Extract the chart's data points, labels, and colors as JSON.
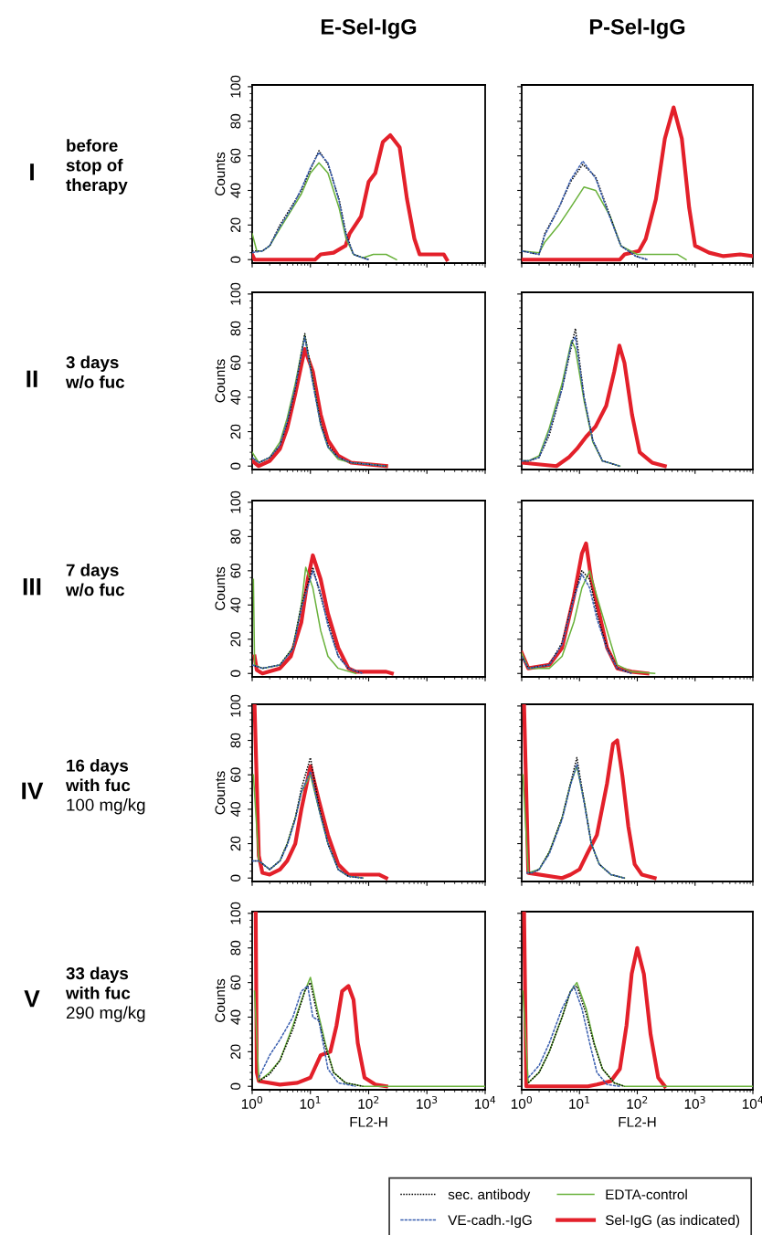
{
  "chart_data": [
    {
      "type": "line",
      "title": "E-Sel-IgG",
      "ylabel": "Counts",
      "annotations": [
        "I",
        "before\nstop of\ntherapy"
      ],
      "log": "x",
      "xlim": [
        1,
        10000
      ],
      "ylim": [
        -2,
        101
      ],
      "xticks": [
        {
          "value": 1,
          "label": null
        },
        {
          "value": 10,
          "label": null
        },
        {
          "value": 100,
          "label": null
        },
        {
          "value": 1000,
          "label": null
        },
        {
          "value": 10000,
          "label": null
        }
      ],
      "yticks": [
        0,
        20,
        40,
        60,
        80,
        100
      ],
      "tick_labels": "y",
      "grid": false,
      "legend": "bottom",
      "series": [
        {
          "name": "sec. antibody",
          "color": "#000000",
          "line_style": "dotted",
          "x": [
            1,
            1.5,
            2,
            3,
            5,
            7,
            10,
            14,
            20,
            31,
            41,
            55,
            80,
            100
          ],
          "values": [
            5,
            5,
            8,
            20,
            32,
            40,
            52,
            63,
            55,
            35,
            15,
            3,
            1,
            0
          ]
        },
        {
          "name": "VE-cadh.-IgG",
          "color": "#3a5fb0",
          "line_style": "dashed",
          "x": [
            1,
            1.5,
            2,
            3,
            5,
            7,
            10,
            14,
            20,
            31,
            41,
            55,
            80,
            100
          ],
          "values": [
            4,
            5,
            8,
            19,
            31,
            41,
            53,
            62,
            56,
            34,
            14,
            3,
            1,
            0
          ]
        },
        {
          "name": "EDTA-control",
          "color": "#6ab23c",
          "line_style": "solid",
          "x": [
            1,
            1.2,
            1.5,
            2,
            3,
            5,
            7,
            10,
            14,
            20,
            31,
            41,
            55,
            80,
            120,
            200,
            300
          ],
          "values": [
            15,
            5,
            5,
            8,
            18,
            30,
            38,
            50,
            56,
            50,
            30,
            12,
            3,
            1,
            3,
            3,
            0
          ]
        },
        {
          "name": "Sel-IgG (as indicated)",
          "color": "#e3202a",
          "line_style": "solid",
          "x": [
            1,
            1.1,
            12,
            15,
            25,
            40,
            47,
            74,
            100,
            130,
            175,
            235,
            340,
            455,
            610,
            750,
            1950,
            2200
          ],
          "values": [
            3,
            0,
            0,
            3,
            4,
            8,
            15,
            25,
            45,
            50,
            68,
            72,
            65,
            35,
            12,
            3,
            3,
            0
          ]
        }
      ]
    },
    {
      "type": "line",
      "title": "P-Sel-IgG",
      "log": "x",
      "xlim": [
        1,
        10000
      ],
      "ylim": [
        -2,
        101
      ],
      "xticks": [
        {
          "value": 1,
          "label": null
        },
        {
          "value": 10,
          "label": null
        },
        {
          "value": 100,
          "label": null
        },
        {
          "value": 1000,
          "label": null
        },
        {
          "value": 10000,
          "label": null
        }
      ],
      "yticks": [
        {
          "value": 0,
          "label": null
        },
        {
          "value": 20,
          "label": null
        },
        {
          "value": 40,
          "label": null
        },
        {
          "value": 60,
          "label": null
        },
        {
          "value": 80,
          "label": null
        },
        {
          "value": 100,
          "label": null
        }
      ],
      "tick_labels": false,
      "grid": false,
      "series": [
        {
          "color": "#000000",
          "line_style": "dotted",
          "x": [
            1,
            2,
            2.5,
            4.4,
            7,
            11.4,
            19,
            34,
            52,
            94,
            150
          ],
          "values": [
            5,
            3,
            15,
            30,
            45,
            55,
            48,
            25,
            8,
            2,
            0
          ]
        },
        {
          "color": "#3a5fb0",
          "line_style": "dashed",
          "x": [
            1,
            2,
            2.5,
            4.4,
            7,
            11.4,
            19,
            34,
            52,
            94,
            150
          ],
          "values": [
            5,
            3,
            14,
            30,
            46,
            57,
            47,
            24,
            8,
            2,
            0
          ]
        },
        {
          "color": "#6ab23c",
          "line_style": "solid",
          "x": [
            1,
            2,
            2.5,
            4.4,
            7,
            12,
            19,
            34,
            52,
            100,
            300,
            500,
            700
          ],
          "values": [
            5,
            4,
            10,
            20,
            30,
            42,
            40,
            25,
            8,
            3,
            3,
            3,
            0
          ]
        },
        {
          "color": "#e3202a",
          "line_style": "solid",
          "x": [
            1,
            50,
            60,
            107,
            140,
            210,
            300,
            425,
            590,
            790,
            1000,
            1750,
            3100,
            6000,
            10000
          ],
          "values": [
            0,
            0,
            3,
            5,
            12,
            35,
            70,
            88,
            70,
            30,
            8,
            4,
            2,
            3,
            2
          ]
        }
      ]
    },
    {
      "type": "line",
      "ylabel": "Counts",
      "annotations": [
        "II",
        "3 days\nw/o fuc"
      ],
      "log": "x",
      "xlim": [
        1,
        10000
      ],
      "ylim": [
        -2,
        101
      ],
      "xticks": [
        {
          "value": 1,
          "label": null
        },
        {
          "value": 10,
          "label": null
        },
        {
          "value": 100,
          "label": null
        },
        {
          "value": 1000,
          "label": null
        },
        {
          "value": 10000,
          "label": null
        }
      ],
      "yticks": [
        0,
        20,
        40,
        60,
        80,
        100
      ],
      "tick_labels": "y",
      "grid": false,
      "series": [
        {
          "color": "#000000",
          "line_style": "dotted",
          "x": [
            1,
            1.3,
            2,
            3,
            4,
            5.5,
            8,
            11,
            15,
            20,
            30,
            50,
            100,
            200
          ],
          "values": [
            5,
            2,
            5,
            12,
            25,
            45,
            77,
            50,
            25,
            12,
            5,
            2,
            1,
            0
          ]
        },
        {
          "color": "#3a5fb0",
          "line_style": "dashed",
          "x": [
            1,
            1.3,
            2,
            3,
            4,
            5.5,
            8,
            11,
            15,
            20,
            30,
            50,
            100,
            200
          ],
          "values": [
            5,
            2,
            5,
            12,
            26,
            46,
            75,
            48,
            24,
            11,
            5,
            2,
            1,
            0
          ]
        },
        {
          "color": "#6ab23c",
          "line_style": "solid",
          "x": [
            1,
            1.3,
            2,
            3,
            4,
            5.5,
            8,
            11,
            15,
            20,
            30,
            50,
            100,
            200
          ],
          "values": [
            8,
            2,
            5,
            14,
            28,
            48,
            76,
            50,
            24,
            11,
            4,
            2,
            1,
            0
          ]
        },
        {
          "color": "#e3202a",
          "line_style": "solid",
          "x": [
            1,
            1.3,
            2,
            3,
            4,
            5.5,
            8,
            11,
            15,
            20,
            30,
            50,
            100,
            200
          ],
          "values": [
            3,
            0,
            3,
            10,
            22,
            42,
            68,
            55,
            30,
            15,
            6,
            2,
            1,
            0
          ]
        }
      ]
    },
    {
      "type": "line",
      "log": "x",
      "xlim": [
        1,
        10000
      ],
      "ylim": [
        -2,
        101
      ],
      "xticks": [
        {
          "value": 1,
          "label": null
        },
        {
          "value": 10,
          "label": null
        },
        {
          "value": 100,
          "label": null
        },
        {
          "value": 1000,
          "label": null
        },
        {
          "value": 10000,
          "label": null
        }
      ],
      "yticks": [
        {
          "value": 0,
          "label": null
        },
        {
          "value": 20,
          "label": null
        },
        {
          "value": 40,
          "label": null
        },
        {
          "value": 60,
          "label": null
        },
        {
          "value": 80,
          "label": null
        },
        {
          "value": 100,
          "label": null
        }
      ],
      "tick_labels": false,
      "grid": false,
      "series": [
        {
          "color": "#000000",
          "line_style": "dotted",
          "x": [
            1,
            1.3,
            2,
            3,
            5,
            7.3,
            8.5,
            12,
            17,
            25,
            50
          ],
          "values": [
            3,
            3,
            5,
            18,
            45,
            70,
            80,
            40,
            15,
            3,
            0
          ]
        },
        {
          "color": "#3a5fb0",
          "line_style": "dashed",
          "x": [
            1,
            1.3,
            2,
            3,
            5,
            7.3,
            8.5,
            12,
            17,
            25,
            50
          ],
          "values": [
            3,
            3,
            5,
            20,
            45,
            72,
            75,
            40,
            15,
            3,
            0
          ]
        },
        {
          "color": "#6ab23c",
          "line_style": "solid",
          "x": [
            1,
            1.3,
            2,
            3,
            5,
            7.3,
            8.5,
            12,
            17,
            25,
            50
          ],
          "values": [
            3,
            3,
            6,
            22,
            48,
            73,
            68,
            38,
            14,
            3,
            0
          ]
        },
        {
          "color": "#e3202a",
          "line_style": "solid",
          "x": [
            1,
            4,
            6.5,
            9,
            13,
            19,
            29,
            40,
            49,
            60,
            81,
            110,
            180,
            300
          ],
          "values": [
            2,
            0,
            5,
            10,
            17,
            23,
            35,
            55,
            70,
            60,
            30,
            8,
            2,
            0
          ]
        }
      ]
    },
    {
      "type": "line",
      "ylabel": "Counts",
      "annotations": [
        "III",
        "7 days\nw/o fuc"
      ],
      "log": "x",
      "xlim": [
        1,
        10000
      ],
      "ylim": [
        -2,
        101
      ],
      "xticks": [
        {
          "value": 1,
          "label": null
        },
        {
          "value": 10,
          "label": null
        },
        {
          "value": 100,
          "label": null
        },
        {
          "value": 1000,
          "label": null
        },
        {
          "value": 10000,
          "label": null
        }
      ],
      "yticks": [
        0,
        20,
        40,
        60,
        80,
        100
      ],
      "tick_labels": "y",
      "grid": false,
      "series": [
        {
          "color": "#000000",
          "line_style": "dotted",
          "x": [
            1,
            1.5,
            3,
            5,
            7,
            11,
            15,
            20,
            30,
            45,
            80
          ],
          "values": [
            5,
            3,
            5,
            15,
            40,
            62,
            45,
            30,
            10,
            3,
            0
          ]
        },
        {
          "color": "#3a5fb0",
          "line_style": "dashed",
          "x": [
            1,
            1.5,
            3,
            5,
            7,
            11,
            15,
            20,
            30,
            45,
            80
          ],
          "values": [
            5,
            3,
            5,
            14,
            38,
            60,
            47,
            28,
            10,
            3,
            0
          ]
        },
        {
          "color": "#6ab23c",
          "line_style": "solid",
          "x": [
            1.05,
            1.1,
            1.5,
            3,
            5,
            7,
            8.3,
            11,
            15,
            20,
            30,
            60
          ],
          "values": [
            55,
            5,
            3,
            5,
            15,
            40,
            62,
            50,
            25,
            10,
            3,
            0
          ]
        },
        {
          "color": "#e3202a",
          "line_style": "solid",
          "x": [
            1.1,
            1.2,
            1.5,
            3,
            4.6,
            7,
            9,
            11,
            15,
            20,
            30,
            45,
            60,
            200,
            250
          ],
          "values": [
            10,
            2,
            0,
            3,
            10,
            30,
            55,
            69,
            55,
            35,
            15,
            3,
            1,
            1,
            0
          ]
        }
      ]
    },
    {
      "type": "line",
      "log": "x",
      "xlim": [
        1,
        10000
      ],
      "ylim": [
        -2,
        101
      ],
      "xticks": [
        {
          "value": 1,
          "label": null
        },
        {
          "value": 10,
          "label": null
        },
        {
          "value": 100,
          "label": null
        },
        {
          "value": 1000,
          "label": null
        },
        {
          "value": 10000,
          "label": null
        }
      ],
      "yticks": [
        {
          "value": 0,
          "label": null
        },
        {
          "value": 20,
          "label": null
        },
        {
          "value": 40,
          "label": null
        },
        {
          "value": 60,
          "label": null
        },
        {
          "value": 80,
          "label": null
        },
        {
          "value": 100,
          "label": null
        }
      ],
      "tick_labels": false,
      "grid": false,
      "series": [
        {
          "color": "#000000",
          "line_style": "dotted",
          "x": [
            1,
            1.3,
            3,
            5,
            8,
            11,
            15,
            20,
            30,
            45,
            80
          ],
          "values": [
            10,
            3,
            5,
            18,
            45,
            60,
            55,
            35,
            15,
            3,
            0
          ]
        },
        {
          "color": "#3a5fb0",
          "line_style": "dashed",
          "x": [
            1,
            1.3,
            3,
            5,
            8,
            11,
            15,
            20,
            30,
            45,
            80
          ],
          "values": [
            10,
            3,
            5,
            17,
            44,
            58,
            50,
            32,
            14,
            3,
            0
          ]
        },
        {
          "color": "#6ab23c",
          "line_style": "solid",
          "x": [
            1,
            1.3,
            3,
            5,
            8,
            11,
            15,
            20,
            30,
            45,
            80,
            200
          ],
          "values": [
            12,
            3,
            3,
            10,
            30,
            50,
            60,
            45,
            25,
            5,
            1,
            0
          ]
        },
        {
          "color": "#e3202a",
          "line_style": "solid",
          "x": [
            1,
            1.3,
            3,
            5,
            8,
            11,
            13,
            16,
            22,
            30,
            45,
            80,
            150
          ],
          "values": [
            12,
            3,
            5,
            15,
            45,
            70,
            76,
            55,
            35,
            15,
            3,
            1,
            0
          ]
        }
      ]
    },
    {
      "type": "line",
      "ylabel": "Counts",
      "annotations": [
        "IV",
        "16 days\nwith fuc",
        "100 mg/kg"
      ],
      "log": "x",
      "xlim": [
        1,
        10000
      ],
      "ylim": [
        -2,
        101
      ],
      "xticks": [
        {
          "value": 1,
          "label": null
        },
        {
          "value": 10,
          "label": null
        },
        {
          "value": 100,
          "label": null
        },
        {
          "value": 1000,
          "label": null
        },
        {
          "value": 10000,
          "label": null
        }
      ],
      "yticks": [
        0,
        20,
        40,
        60,
        80,
        100
      ],
      "tick_labels": "y",
      "grid": false,
      "series": [
        {
          "color": "#000000",
          "line_style": "dotted",
          "x": [
            1,
            1.3,
            2,
            3,
            4,
            5.5,
            7,
            10,
            14,
            20,
            30,
            45,
            80
          ],
          "values": [
            10,
            10,
            5,
            10,
            20,
            35,
            52,
            70,
            42,
            20,
            5,
            1,
            0
          ]
        },
        {
          "color": "#3a5fb0",
          "line_style": "dashed",
          "x": [
            1,
            1.3,
            2,
            3,
            4,
            5.5,
            7,
            10,
            14,
            20,
            30,
            45,
            80
          ],
          "values": [
            10,
            10,
            5,
            10,
            19,
            34,
            50,
            62,
            40,
            20,
            5,
            1,
            0
          ]
        },
        {
          "color": "#6ab23c",
          "line_style": "solid",
          "x": [
            1.05,
            1.3,
            2,
            3,
            4,
            5.5,
            7,
            10,
            14,
            20,
            30,
            45,
            80
          ],
          "values": [
            60,
            10,
            5,
            10,
            20,
            35,
            50,
            60,
            40,
            20,
            5,
            1,
            0
          ]
        },
        {
          "color": "#e3202a",
          "line_style": "solid",
          "x": [
            1.1,
            1.3,
            1.5,
            2,
            3,
            4,
            5.5,
            7,
            10,
            14,
            20,
            30,
            45,
            80,
            150,
            200
          ],
          "values": [
            100,
            13,
            3,
            2,
            5,
            10,
            20,
            40,
            65,
            45,
            25,
            8,
            2,
            2,
            2,
            0
          ]
        }
      ]
    },
    {
      "type": "line",
      "log": "x",
      "xlim": [
        1,
        10000
      ],
      "ylim": [
        -2,
        101
      ],
      "xticks": [
        {
          "value": 1,
          "label": null
        },
        {
          "value": 10,
          "label": null
        },
        {
          "value": 100,
          "label": null
        },
        {
          "value": 1000,
          "label": null
        },
        {
          "value": 10000,
          "label": null
        }
      ],
      "yticks": [
        {
          "value": 0,
          "label": null
        },
        {
          "value": 20,
          "label": null
        },
        {
          "value": 40,
          "label": null
        },
        {
          "value": 60,
          "label": null
        },
        {
          "value": 80,
          "label": null
        },
        {
          "value": 100,
          "label": null
        }
      ],
      "tick_labels": false,
      "grid": false,
      "series": [
        {
          "color": "#000000",
          "line_style": "dotted",
          "x": [
            1.2,
            1.5,
            2,
            3,
            5,
            7,
            9,
            12,
            16,
            22,
            35,
            60
          ],
          "values": [
            3,
            3,
            5,
            15,
            35,
            55,
            70,
            45,
            20,
            8,
            2,
            0
          ]
        },
        {
          "color": "#3a5fb0",
          "line_style": "dashed",
          "x": [
            1.2,
            1.5,
            2,
            3,
            5,
            7,
            9,
            12,
            16,
            22,
            35,
            60
          ],
          "values": [
            3,
            3,
            5,
            14,
            34,
            54,
            66,
            44,
            20,
            8,
            2,
            0
          ]
        },
        {
          "color": "#6ab23c",
          "line_style": "solid",
          "x": [
            1.05,
            1.3,
            2,
            3,
            5,
            7,
            9,
            12,
            16,
            22,
            35,
            60
          ],
          "values": [
            60,
            3,
            5,
            15,
            35,
            55,
            65,
            45,
            20,
            8,
            2,
            0
          ]
        },
        {
          "color": "#e3202a",
          "line_style": "solid",
          "x": [
            1.1,
            1.3,
            5,
            7,
            10,
            14,
            20,
            30,
            38,
            45,
            55,
            70,
            90,
            120,
            200
          ],
          "values": [
            100,
            3,
            0,
            2,
            5,
            15,
            25,
            55,
            78,
            80,
            60,
            30,
            8,
            2,
            0
          ]
        }
      ]
    },
    {
      "type": "line",
      "ylabel": "Counts",
      "xlabel": "FL2-H",
      "annotations": [
        "V",
        "33 days\nwith fuc",
        "290 mg/kg"
      ],
      "log": "x",
      "xlim": [
        1,
        10000
      ],
      "ylim": [
        -2,
        101
      ],
      "xticks": [
        {
          "value": 1,
          "label": "10$^{0}$"
        },
        {
          "value": 10,
          "label": "10$^{1}$"
        },
        {
          "value": 100,
          "label": "10$^{2}$"
        },
        {
          "value": 1000,
          "label": "10$^{3}$"
        },
        {
          "value": 10000,
          "label": "10$^{4}$"
        }
      ],
      "yticks": [
        0,
        20,
        40,
        60,
        80,
        100
      ],
      "grid": false,
      "series": [
        {
          "color": "#000000",
          "line_style": "dotted",
          "x": [
            1.3,
            2,
            3,
            5,
            8,
            10,
            13,
            18,
            25,
            40,
            80
          ],
          "values": [
            3,
            7,
            15,
            33,
            55,
            60,
            42,
            23,
            8,
            2,
            0
          ]
        },
        {
          "color": "#3a5fb0",
          "line_style": "dashed",
          "x": [
            1.3,
            2,
            3,
            5,
            7,
            9,
            11,
            14,
            20,
            30,
            60
          ],
          "values": [
            5,
            18,
            27,
            40,
            55,
            58,
            40,
            38,
            10,
            2,
            0
          ]
        },
        {
          "color": "#6ab23c",
          "line_style": "solid",
          "x": [
            1.1,
            1.3,
            2,
            3,
            5,
            8,
            10,
            13,
            18,
            25,
            40,
            80,
            10000
          ],
          "values": [
            55,
            3,
            8,
            15,
            35,
            55,
            63,
            45,
            25,
            8,
            2,
            0,
            0
          ]
        },
        {
          "color": "#e3202a",
          "line_style": "solid",
          "x": [
            1.15,
            1.2,
            1.3,
            3,
            6,
            10,
            15,
            22,
            28,
            35,
            45,
            55,
            65,
            85,
            130,
            200
          ],
          "values": [
            100,
            8,
            3,
            1,
            2,
            5,
            18,
            20,
            35,
            55,
            58,
            50,
            25,
            5,
            1,
            0
          ]
        }
      ]
    },
    {
      "type": "line",
      "xlabel": "FL2-H",
      "log": "x",
      "xlim": [
        1,
        10000
      ],
      "ylim": [
        -2,
        101
      ],
      "xticks": [
        {
          "value": 1,
          "label": "10$^{0}$"
        },
        {
          "value": 10,
          "label": "10$^{1}$"
        },
        {
          "value": 100,
          "label": "10$^{2}$"
        },
        {
          "value": 1000,
          "label": "10$^{3}$"
        },
        {
          "value": 10000,
          "label": "10$^{4}$"
        }
      ],
      "yticks": [
        {
          "value": 0,
          "label": null
        },
        {
          "value": 20,
          "label": null
        },
        {
          "value": 40,
          "label": null
        },
        {
          "value": 60,
          "label": null
        },
        {
          "value": 80,
          "label": null
        },
        {
          "value": 100,
          "label": null
        }
      ],
      "tick_labels": "x",
      "grid": false,
      "series": [
        {
          "color": "#000000",
          "line_style": "dotted",
          "x": [
            1.3,
            2,
            3,
            5,
            7,
            9,
            13,
            18,
            25,
            40,
            60
          ],
          "values": [
            2,
            8,
            20,
            40,
            55,
            58,
            42,
            24,
            10,
            2,
            0
          ]
        },
        {
          "color": "#3a5fb0",
          "line_style": "dashed",
          "x": [
            1.3,
            2,
            3,
            5,
            8,
            11,
            15,
            20,
            30,
            50
          ],
          "values": [
            5,
            12,
            25,
            45,
            58,
            45,
            25,
            8,
            1,
            0
          ]
        },
        {
          "color": "#6ab23c",
          "line_style": "solid",
          "x": [
            1.05,
            1.3,
            2,
            3,
            5,
            7,
            9,
            13,
            18,
            25,
            40,
            60,
            10000
          ],
          "values": [
            55,
            2,
            8,
            20,
            40,
            55,
            60,
            45,
            25,
            10,
            2,
            0,
            0
          ]
        },
        {
          "color": "#e3202a",
          "line_style": "solid",
          "x": [
            1.1,
            1.2,
            14,
            20,
            35,
            50,
            65,
            80,
            100,
            130,
            170,
            230,
            300
          ],
          "values": [
            100,
            0,
            0,
            1,
            3,
            10,
            35,
            65,
            80,
            65,
            30,
            5,
            0
          ]
        }
      ]
    }
  ]
}
